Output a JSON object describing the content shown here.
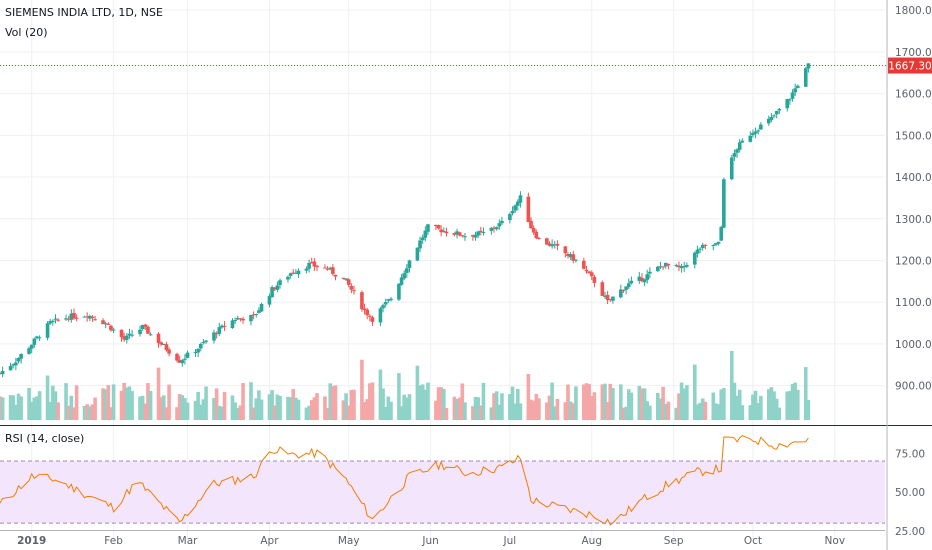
{
  "title": "SIEMENS INDIA LTD, 1D, NSE",
  "volume_label": "Vol (20)",
  "rsi_label": "RSI (14, close)",
  "last_price_label": "1667.30",
  "colors": {
    "up": "#26a69a",
    "down": "#ef5350",
    "vol_up": "#8fd3c8",
    "vol_down": "#f4a7a6",
    "rsi_line": "#f57c00",
    "rsi_band": "#f3e5fc",
    "price_line": "#e53935",
    "grid": "#eef0f3",
    "axis_text": "#5d606b"
  },
  "chart_data": [
    {
      "type": "candlestick",
      "title": "SIEMENS INDIA LTD, 1D, NSE",
      "x_tick_labels": [
        "2019",
        "Feb",
        "Mar",
        "Apr",
        "May",
        "Jun",
        "Jul",
        "Aug",
        "Sep",
        "Oct",
        "Nov"
      ],
      "y_tick_labels": [
        "900.00",
        "1000.00",
        "1100.00",
        "1200.00",
        "1300.00",
        "1400.00",
        "1500.00",
        "1600.00",
        "1700.00",
        "1800.00"
      ],
      "y_range": [
        820,
        1810
      ],
      "last_price": 1667.3,
      "anchors": [
        [
          "2018-12-20",
          930
        ],
        [
          "2018-12-26",
          960
        ],
        [
          "2019-01-01",
          1000
        ],
        [
          "2019-01-08",
          1050
        ],
        [
          "2019-01-15",
          1065
        ],
        [
          "2019-01-22",
          1070
        ],
        [
          "2019-01-29",
          1050
        ],
        [
          "2019-02-05",
          1010
        ],
        [
          "2019-02-12",
          1040
        ],
        [
          "2019-02-19",
          1000
        ],
        [
          "2019-02-26",
          960
        ],
        [
          "2019-03-05",
          990
        ],
        [
          "2019-03-12",
          1030
        ],
        [
          "2019-03-19",
          1060
        ],
        [
          "2019-03-26",
          1065
        ],
        [
          "2019-04-02",
          1130
        ],
        [
          "2019-04-09",
          1170
        ],
        [
          "2019-04-16",
          1190
        ],
        [
          "2019-04-23",
          1180
        ],
        [
          "2019-04-30",
          1150
        ],
        [
          "2019-05-07",
          1080
        ],
        [
          "2019-05-10",
          1060
        ],
        [
          "2019-05-17",
          1110
        ],
        [
          "2019-05-24",
          1200
        ],
        [
          "2019-05-31",
          1280
        ],
        [
          "2019-06-07",
          1270
        ],
        [
          "2019-06-14",
          1260
        ],
        [
          "2019-06-21",
          1265
        ],
        [
          "2019-06-28",
          1290
        ],
        [
          "2019-07-05",
          1350
        ],
        [
          "2019-07-09",
          1280
        ],
        [
          "2019-07-12",
          1250
        ],
        [
          "2019-07-19",
          1230
        ],
        [
          "2019-07-26",
          1200
        ],
        [
          "2019-08-02",
          1150
        ],
        [
          "2019-08-07",
          1100
        ],
        [
          "2019-08-14",
          1140
        ],
        [
          "2019-08-21",
          1160
        ],
        [
          "2019-08-28",
          1190
        ],
        [
          "2019-09-04",
          1180
        ],
        [
          "2019-09-11",
          1230
        ],
        [
          "2019-09-18",
          1240
        ],
        [
          "2019-09-19",
          1280
        ],
        [
          "2019-09-20",
          1400
        ],
        [
          "2019-09-25",
          1470
        ],
        [
          "2019-10-01",
          1510
        ],
        [
          "2019-10-08",
          1540
        ],
        [
          "2019-10-15",
          1590
        ],
        [
          "2019-10-22",
          1667.3
        ]
      ]
    },
    {
      "type": "bar",
      "title": "Vol (20)",
      "note": "relative volume levels, no axis values printed"
    },
    {
      "type": "line",
      "title": "RSI (14, close)",
      "y_tick_labels": [
        "25.00",
        "50.00",
        "75.00"
      ],
      "y_range": [
        23,
        90
      ],
      "band": [
        30,
        70
      ],
      "anchors": [
        [
          "2018-12-20",
          42
        ],
        [
          "2019-01-01",
          60
        ],
        [
          "2019-01-10",
          58
        ],
        [
          "2019-01-20",
          50
        ],
        [
          "2019-02-01",
          40
        ],
        [
          "2019-02-10",
          57
        ],
        [
          "2019-02-26",
          30
        ],
        [
          "2019-03-10",
          55
        ],
        [
          "2019-03-26",
          60
        ],
        [
          "2019-04-02",
          78
        ],
        [
          "2019-04-09",
          74
        ],
        [
          "2019-04-20",
          75
        ],
        [
          "2019-04-30",
          58
        ],
        [
          "2019-05-10",
          32
        ],
        [
          "2019-05-24",
          60
        ],
        [
          "2019-06-05",
          68
        ],
        [
          "2019-06-15",
          62
        ],
        [
          "2019-06-28",
          66
        ],
        [
          "2019-07-05",
          72
        ],
        [
          "2019-07-09",
          45
        ],
        [
          "2019-07-20",
          40
        ],
        [
          "2019-08-02",
          35
        ],
        [
          "2019-08-09",
          30
        ],
        [
          "2019-08-20",
          45
        ],
        [
          "2019-08-30",
          55
        ],
        [
          "2019-09-10",
          63
        ],
        [
          "2019-09-19",
          65
        ],
        [
          "2019-09-20",
          83
        ],
        [
          "2019-10-01",
          84
        ],
        [
          "2019-10-10",
          80
        ],
        [
          "2019-10-22",
          84
        ]
      ]
    }
  ]
}
